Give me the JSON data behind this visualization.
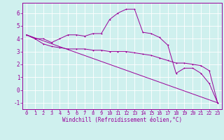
{
  "xlabel": "Windchill (Refroidissement éolien,°C)",
  "background_color": "#cff0ee",
  "grid_color": "#ffffff",
  "line_color": "#990099",
  "spine_color": "#990099",
  "xlim": [
    -0.5,
    23.5
  ],
  "ylim": [
    -1.5,
    6.8
  ],
  "yticks": [
    -1,
    0,
    1,
    2,
    3,
    4,
    5,
    6
  ],
  "xticks": [
    0,
    1,
    2,
    3,
    4,
    5,
    6,
    7,
    8,
    9,
    10,
    11,
    12,
    13,
    14,
    15,
    16,
    17,
    18,
    19,
    20,
    21,
    22,
    23
  ],
  "line1_x": [
    0,
    1,
    2,
    3,
    4,
    5,
    6,
    7,
    8,
    9,
    10,
    11,
    12,
    13,
    14,
    15,
    16,
    17,
    18,
    19,
    20,
    21,
    22,
    23
  ],
  "line1_y": [
    4.3,
    4.0,
    4.0,
    3.7,
    4.0,
    4.3,
    4.3,
    4.2,
    4.4,
    4.4,
    5.5,
    6.0,
    6.3,
    6.3,
    4.5,
    4.4,
    4.1,
    3.5,
    1.3,
    1.7,
    1.7,
    1.3,
    0.5,
    -1.0
  ],
  "line2_x": [
    0,
    1,
    2,
    3,
    4,
    5,
    6,
    7,
    8,
    9,
    10,
    11,
    12,
    13,
    14,
    15,
    16,
    17,
    18,
    19,
    20,
    21,
    22,
    23
  ],
  "line2_y": [
    4.3,
    4.0,
    3.6,
    3.4,
    3.3,
    3.2,
    3.2,
    3.2,
    3.1,
    3.1,
    3.0,
    3.0,
    3.0,
    2.9,
    2.8,
    2.7,
    2.5,
    2.3,
    2.1,
    2.1,
    2.0,
    1.9,
    1.5,
    -1.0
  ],
  "line3_x": [
    0,
    23
  ],
  "line3_y": [
    4.3,
    -1.0
  ],
  "marker_size": 2.0,
  "line_width": 0.7,
  "tick_fontsize": 5.0,
  "xlabel_fontsize": 5.5
}
